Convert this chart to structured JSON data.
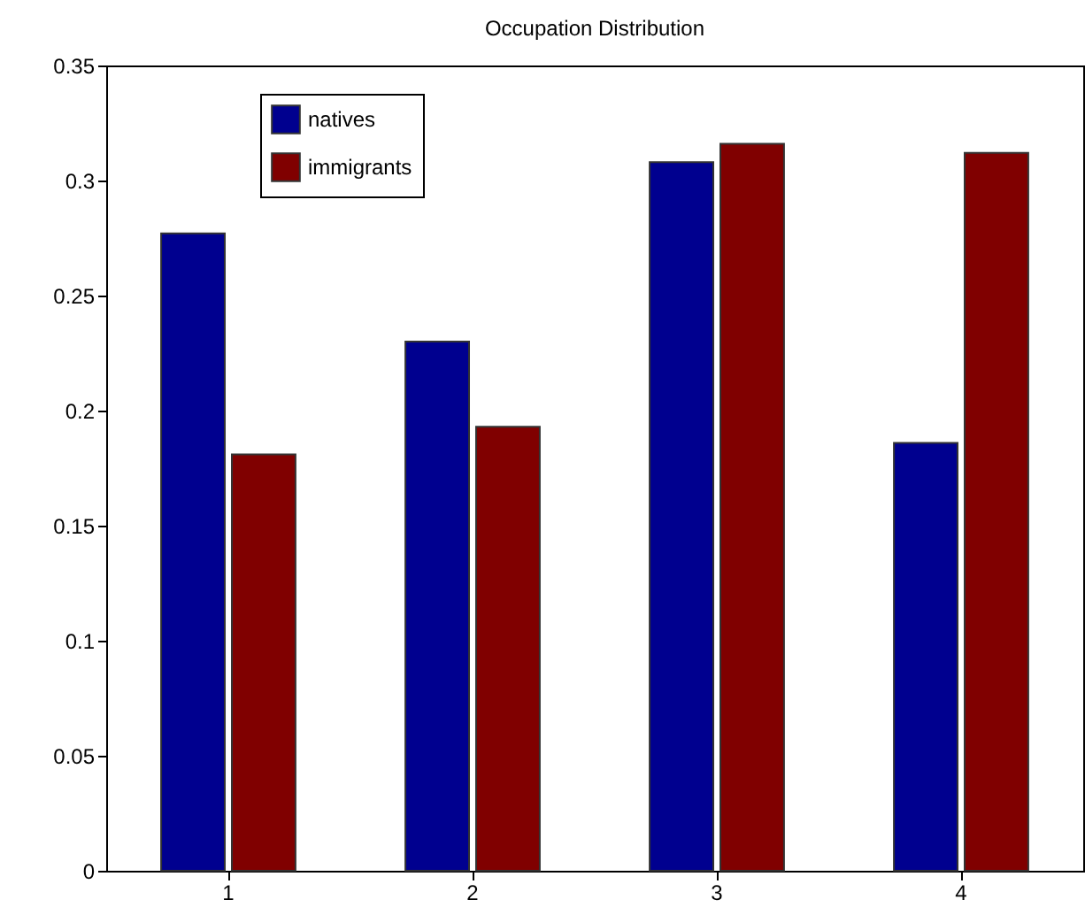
{
  "chart_data": {
    "type": "bar",
    "title": "Occupation Distribution",
    "categories": [
      "1",
      "2",
      "3",
      "4"
    ],
    "series": [
      {
        "name": "natives",
        "color": "#00008f",
        "values": [
          0.277,
          0.23,
          0.308,
          0.186
        ]
      },
      {
        "name": "immigrants",
        "color": "#800000",
        "values": [
          0.181,
          0.193,
          0.316,
          0.312
        ]
      }
    ],
    "ylim": [
      0,
      0.35
    ],
    "yticks": [
      0,
      0.05,
      0.1,
      0.15,
      0.2,
      0.25,
      0.3,
      0.35
    ],
    "grid": false,
    "legend": "top left"
  }
}
